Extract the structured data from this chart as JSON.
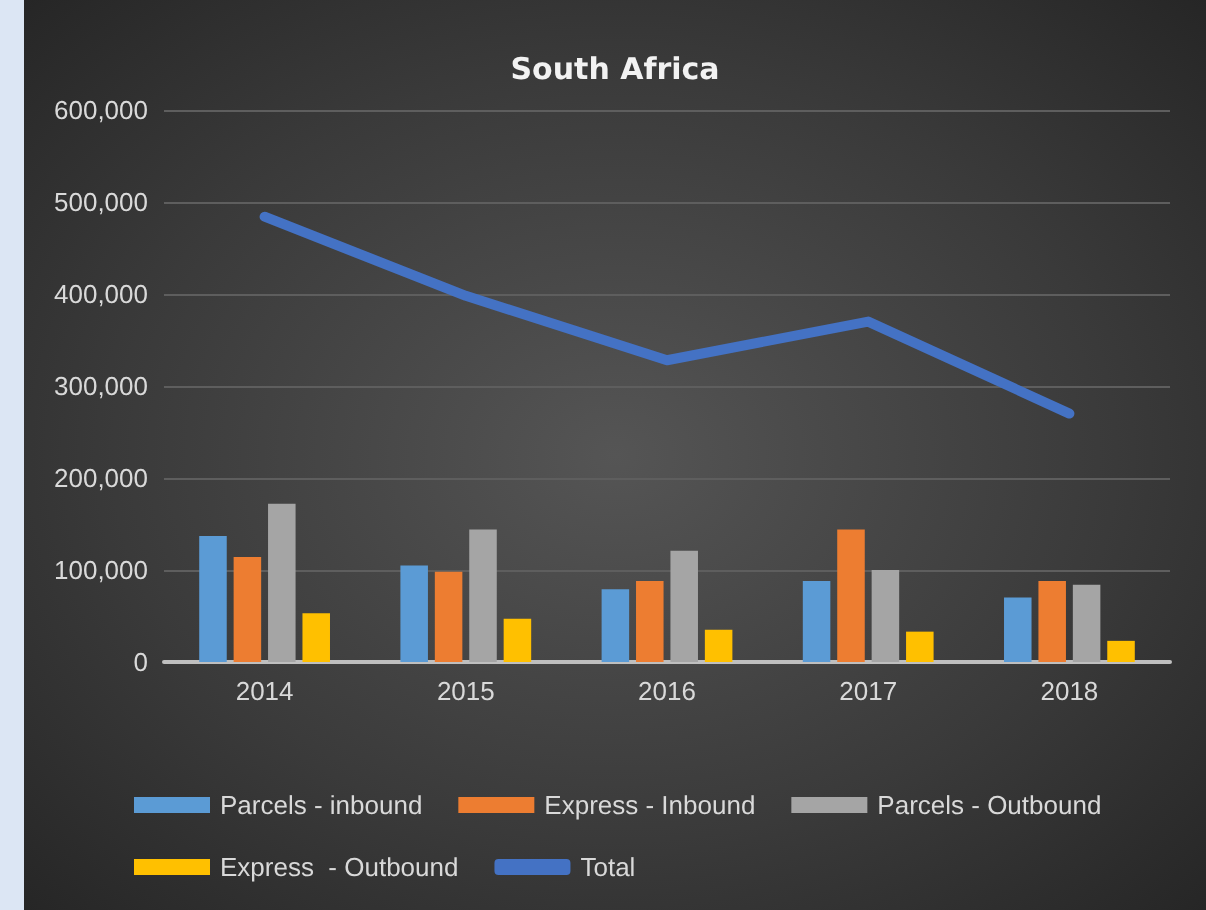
{
  "chart_data": {
    "type": "bar",
    "title": "South Africa",
    "categories": [
      "2014",
      "2015",
      "2016",
      "2017",
      "2018"
    ],
    "series": [
      {
        "name": "Parcels - inbound",
        "color": "#5b9bd5",
        "values": [
          137000,
          105000,
          79000,
          88000,
          70000
        ]
      },
      {
        "name": "Express - Inbound",
        "color": "#ed7d31",
        "values": [
          114000,
          98000,
          88000,
          144000,
          88000
        ]
      },
      {
        "name": "Parcels - Outbound",
        "color": "#a5a5a5",
        "values": [
          172000,
          144000,
          121000,
          100000,
          84000
        ]
      },
      {
        "name": "Express  - Outbound",
        "color": "#ffc000",
        "values": [
          53000,
          47000,
          35000,
          33000,
          23000
        ]
      },
      {
        "name": "Total",
        "type": "line",
        "color": "#4472c4",
        "values": [
          484000,
          398000,
          328000,
          370000,
          270000
        ]
      }
    ],
    "ylim": [
      0,
      600000
    ],
    "yticks": [
      0,
      {
        "value": 100000,
        "label": "100,000"
      },
      {
        "value": 200000,
        "label": "200,000"
      },
      {
        "value": 300000,
        "label": "300,000"
      },
      {
        "value": 400000,
        "label": "400,000"
      },
      {
        "value": 500000,
        "label": "500,000"
      },
      {
        "value": 600000,
        "label": "600,000"
      }
    ],
    "grid": "y",
    "legend": "bottom",
    "marker": "none"
  }
}
